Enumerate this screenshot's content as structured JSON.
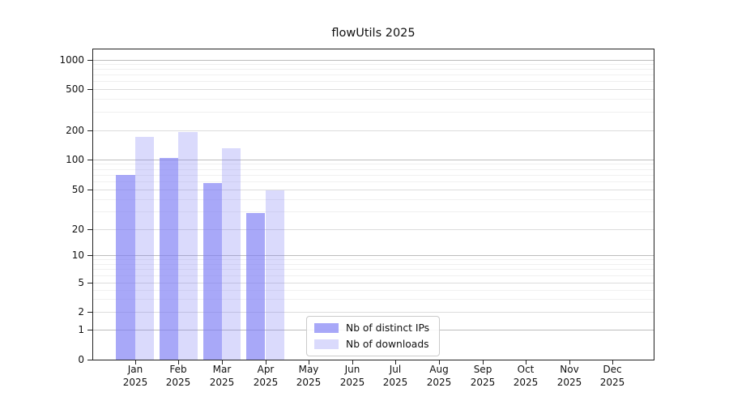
{
  "chart_data": {
    "type": "bar",
    "title": "flowUtils 2025",
    "x_tick_labels": [
      {
        "month": "Jan",
        "year": "2025"
      },
      {
        "month": "Feb",
        "year": "2025"
      },
      {
        "month": "Mar",
        "year": "2025"
      },
      {
        "month": "Apr",
        "year": "2025"
      },
      {
        "month": "May",
        "year": "2025"
      },
      {
        "month": "Jun",
        "year": "2025"
      },
      {
        "month": "Jul",
        "year": "2025"
      },
      {
        "month": "Aug",
        "year": "2025"
      },
      {
        "month": "Sep",
        "year": "2025"
      },
      {
        "month": "Oct",
        "year": "2025"
      },
      {
        "month": "Nov",
        "year": "2025"
      },
      {
        "month": "Dec",
        "year": "2025"
      }
    ],
    "y_tick_labels": [
      "0",
      "1",
      "2",
      "5",
      "10",
      "20",
      "50",
      "100",
      "200",
      "500",
      "1000"
    ],
    "y_scale": "symlog",
    "grid": "both",
    "series": [
      {
        "name": "Nb of distinct IPs",
        "color": "rgba(122,122,245,0.65)",
        "values": [
          70,
          104,
          58,
          29,
          null,
          null,
          null,
          null,
          null,
          null,
          null,
          null
        ]
      },
      {
        "name": "Nb of downloads",
        "color": "rgba(122,122,245,0.28)",
        "values": [
          170,
          190,
          131,
          49,
          null,
          null,
          null,
          null,
          null,
          null,
          null,
          null
        ]
      }
    ],
    "legend_position": "lower center",
    "colors": {
      "grid_major": "#bdbdbd",
      "grid_labeled": "#dcdcdc",
      "grid_minor": "#f0f0f0",
      "spine": "#222222"
    }
  }
}
